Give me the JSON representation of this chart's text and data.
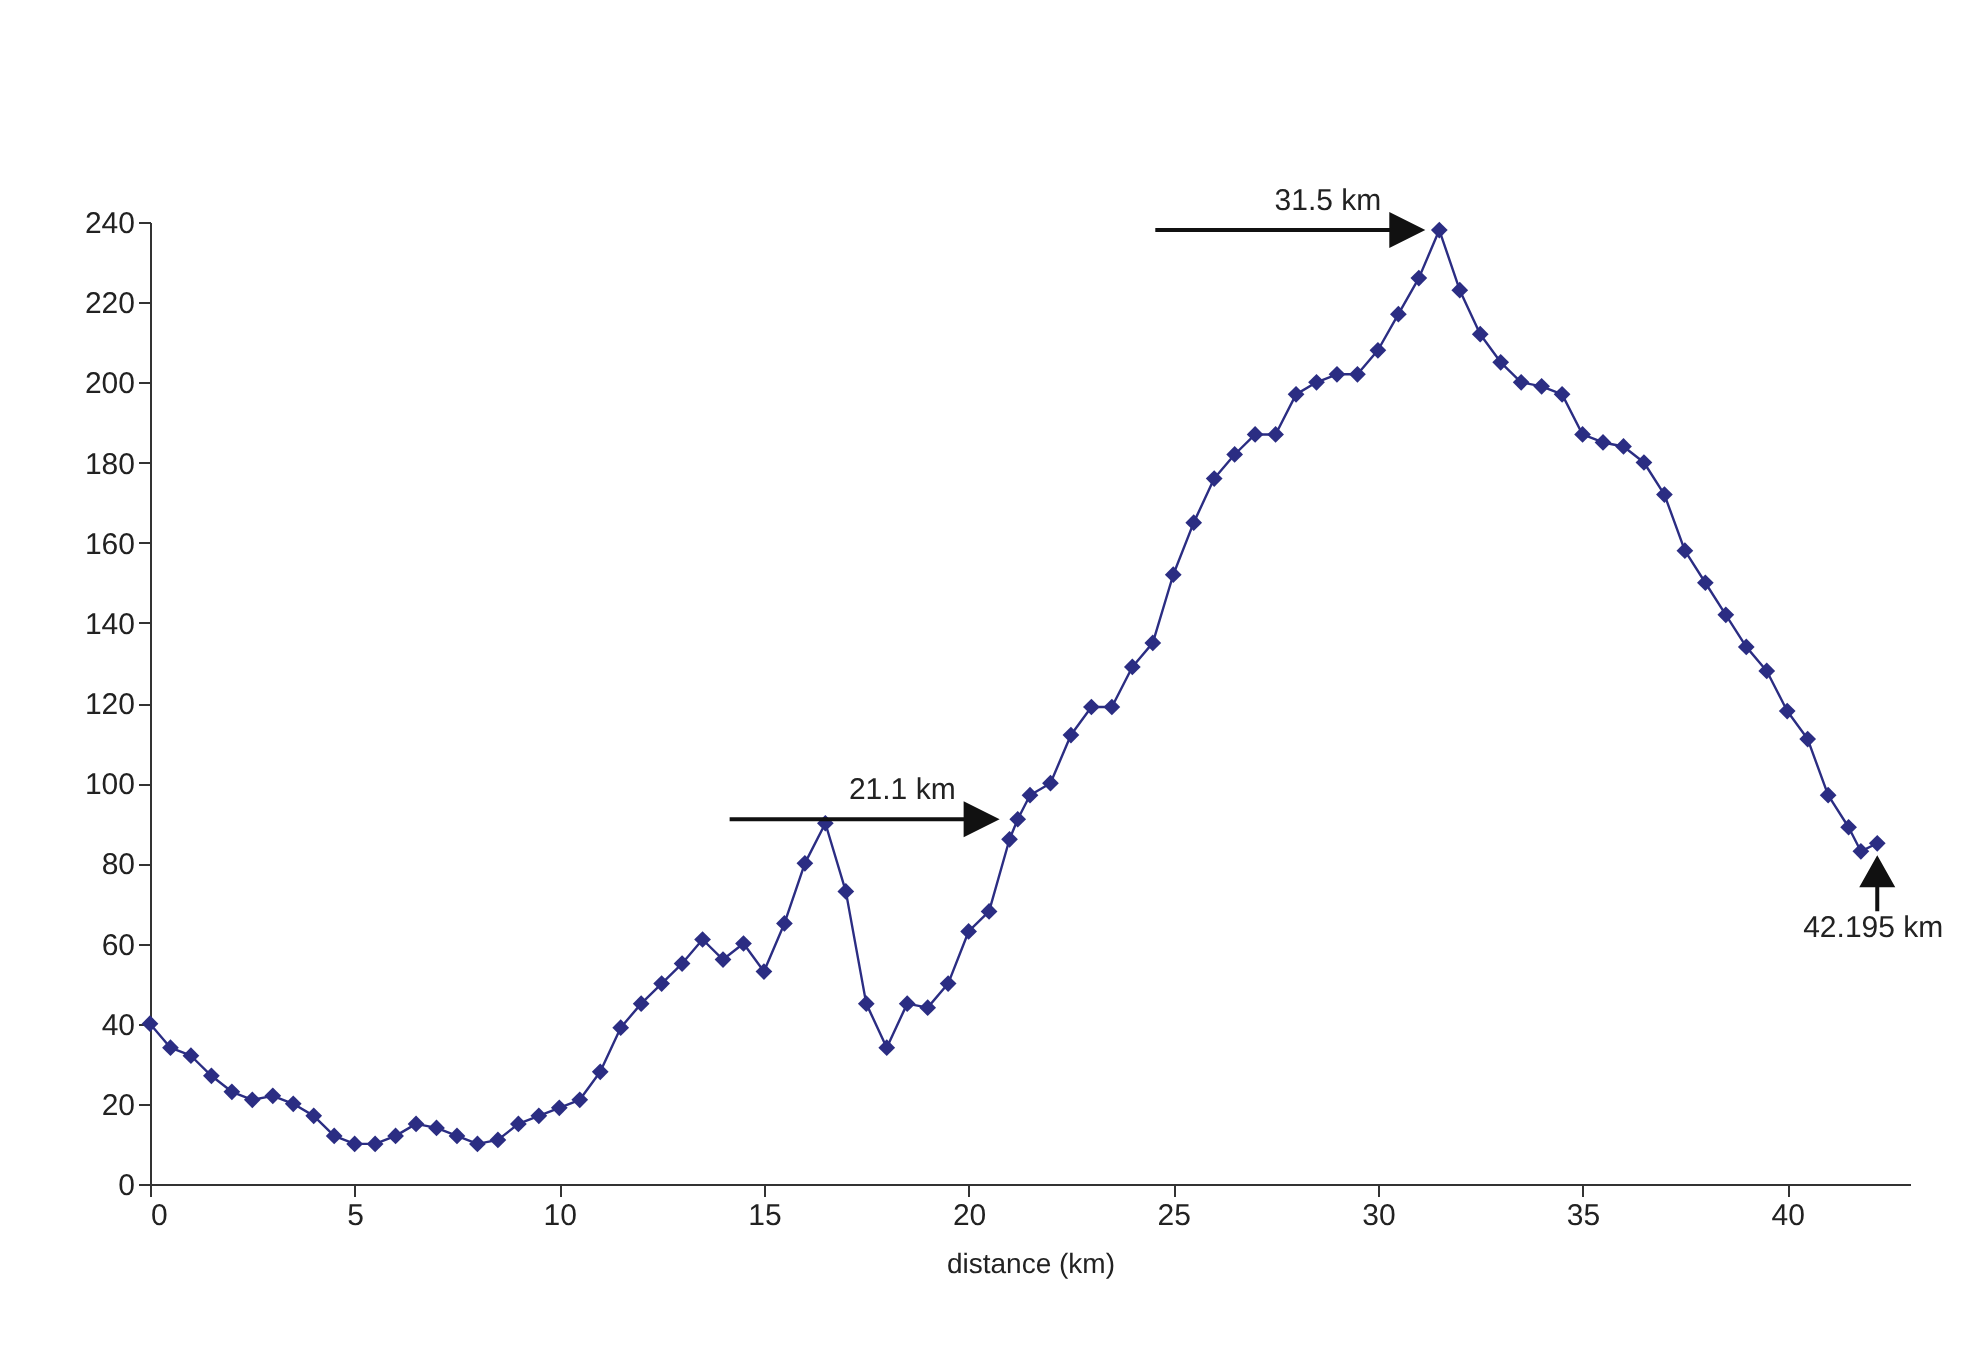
{
  "chart_data": {
    "type": "line",
    "xlabel": "distance (km)",
    "xlim": [
      0,
      43
    ],
    "xticks": [
      0,
      5,
      10,
      15,
      20,
      25,
      30,
      35,
      40
    ],
    "ylim": [
      0,
      240
    ],
    "yticks": [
      0,
      20,
      40,
      60,
      80,
      100,
      120,
      140,
      160,
      180,
      200,
      220,
      240
    ],
    "grid": false,
    "marker": "diamond",
    "line_style": "solid",
    "x": [
      0,
      0.5,
      1,
      1.5,
      2,
      2.5,
      3,
      3.5,
      4,
      4.5,
      5,
      5.5,
      6,
      6.5,
      7,
      7.5,
      8,
      8.5,
      9,
      9.5,
      10,
      10.5,
      11,
      11.5,
      12,
      12.5,
      13,
      13.5,
      14,
      14.5,
      15,
      15.5,
      16,
      16.5,
      17,
      17.5,
      18,
      18.5,
      19,
      19.5,
      20,
      20.5,
      21,
      21.2,
      21.5,
      22,
      22.5,
      23,
      23.5,
      24,
      24.5,
      25,
      25.5,
      26,
      26.5,
      27,
      27.5,
      28,
      28.5,
      29,
      29.5,
      30,
      30.5,
      31,
      31.5,
      32,
      32.5,
      33,
      33.5,
      34,
      34.5,
      35,
      35.5,
      36,
      36.5,
      37,
      37.5,
      38,
      38.5,
      39,
      39.5,
      40,
      40.5,
      41,
      41.5,
      41.8,
      42.2
    ],
    "series": [
      {
        "color": "#2b2d83",
        "values": [
          40,
          34,
          32,
          27,
          23,
          21,
          22,
          20,
          17,
          12,
          10,
          10,
          12,
          15,
          14,
          12,
          10,
          11,
          15,
          17,
          19,
          21,
          28,
          39,
          45,
          50,
          55,
          61,
          56,
          60,
          53,
          65,
          80,
          90,
          73,
          45,
          34,
          45,
          44,
          50,
          63,
          68,
          86,
          91,
          97,
          100,
          112,
          119,
          119,
          129,
          135,
          152,
          165,
          176,
          182,
          187,
          187,
          197,
          200,
          202,
          202,
          208,
          217,
          226,
          238,
          223,
          212,
          205,
          200,
          199,
          197,
          187,
          185,
          184,
          180,
          172,
          158,
          150,
          142,
          134,
          128,
          118,
          111,
          97,
          89,
          83,
          85
        ]
      }
    ],
    "annotations": [
      {
        "text": "21.1 km",
        "x": 21.1,
        "y": 91
      },
      {
        "text": "31.5 km",
        "x": 31.5,
        "y": 238
      },
      {
        "text": "42.195 km",
        "x": 42.2,
        "y": 85
      }
    ]
  }
}
